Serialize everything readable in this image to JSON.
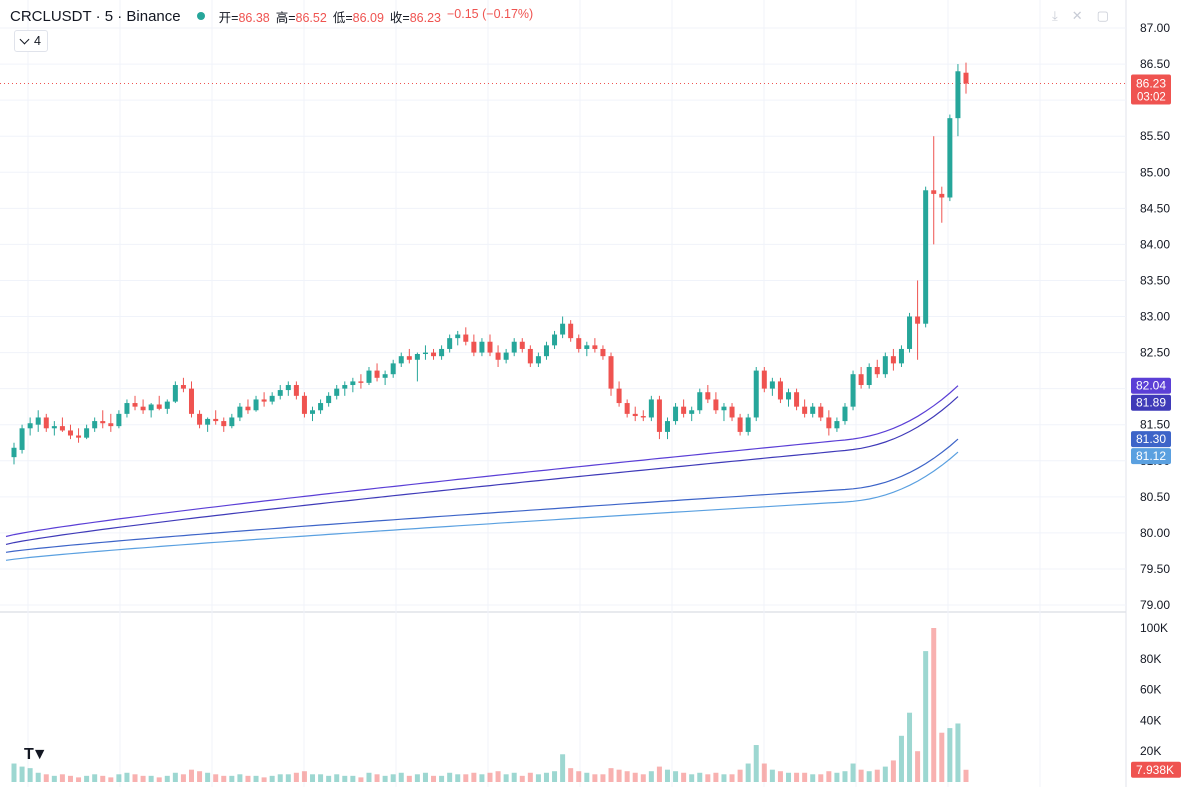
{
  "header": {
    "symbol": "CRCLUSDT · 5 · Binance",
    "open_label": "开=",
    "open_value": "86.38",
    "high_label": "高=",
    "high_value": "86.52",
    "low_label": "低=",
    "low_value": "86.09",
    "close_label": "收=",
    "close_value": "86.23",
    "change": "−0.15 (−0.17%)",
    "indicator_count": "4"
  },
  "colors": {
    "up": "#26a69a",
    "down": "#ef5350",
    "ma1": "#5b3fd6",
    "ma2": "#3f3ab8",
    "ma3": "#3d64c8",
    "ma4": "#5aa0e0"
  },
  "icons": [
    "download-icon",
    "fullscreen-toggle-icon",
    "maximize-icon",
    "chevron-down-icon"
  ],
  "chart_data": {
    "type": "candlestick",
    "price_axis": {
      "min": 79.0,
      "max": 87.0,
      "ticks": [
        "87.00",
        "86.50",
        "86.00",
        "85.50",
        "85.00",
        "84.50",
        "84.00",
        "83.50",
        "83.00",
        "82.50",
        "82.00",
        "81.50",
        "81.00",
        "80.50",
        "80.00",
        "79.50",
        "79.00"
      ]
    },
    "volume_axis": {
      "min": 0,
      "max": 100000,
      "ticks": [
        "100K",
        "80K",
        "60K",
        "40K",
        "20K"
      ]
    },
    "last_price": {
      "value": "86.23",
      "countdown": "03:02"
    },
    "ma_labels": [
      "82.04",
      "81.89",
      "81.30",
      "81.12"
    ],
    "volume_last_label": "7.938K",
    "candles": [
      [
        81.05,
        81.25,
        80.95,
        81.18,
        12000
      ],
      [
        81.15,
        81.5,
        81.1,
        81.45,
        10000
      ],
      [
        81.45,
        81.6,
        81.35,
        81.52,
        9000
      ],
      [
        81.5,
        81.7,
        81.4,
        81.6,
        6000
      ],
      [
        81.6,
        81.65,
        81.4,
        81.45,
        5000
      ],
      [
        81.45,
        81.55,
        81.35,
        81.48,
        4000
      ],
      [
        81.48,
        81.6,
        81.4,
        81.42,
        5000
      ],
      [
        81.42,
        81.5,
        81.3,
        81.35,
        4000
      ],
      [
        81.35,
        81.45,
        81.25,
        81.32,
        3000
      ],
      [
        81.32,
        81.5,
        81.3,
        81.45,
        4000
      ],
      [
        81.45,
        81.6,
        81.4,
        81.55,
        5000
      ],
      [
        81.55,
        81.7,
        81.45,
        81.52,
        4000
      ],
      [
        81.52,
        81.65,
        81.4,
        81.48,
        3000
      ],
      [
        81.48,
        81.7,
        81.45,
        81.65,
        5000
      ],
      [
        81.65,
        81.85,
        81.6,
        81.8,
        6000
      ],
      [
        81.8,
        81.9,
        81.7,
        81.75,
        5000
      ],
      [
        81.75,
        81.85,
        81.65,
        81.7,
        4000
      ],
      [
        81.7,
        81.8,
        81.6,
        81.78,
        4000
      ],
      [
        81.78,
        81.9,
        81.7,
        81.72,
        3000
      ],
      [
        81.72,
        81.85,
        81.65,
        81.82,
        4000
      ],
      [
        81.82,
        82.1,
        81.8,
        82.05,
        6000
      ],
      [
        82.05,
        82.15,
        81.95,
        82.0,
        5000
      ],
      [
        82.0,
        82.1,
        81.6,
        81.65,
        8000
      ],
      [
        81.65,
        81.7,
        81.45,
        81.5,
        7000
      ],
      [
        81.5,
        81.6,
        81.4,
        81.58,
        6000
      ],
      [
        81.58,
        81.7,
        81.5,
        81.55,
        5000
      ],
      [
        81.55,
        81.6,
        81.4,
        81.48,
        4000
      ],
      [
        81.48,
        81.65,
        81.45,
        81.6,
        4000
      ],
      [
        81.6,
        81.8,
        81.55,
        81.75,
        5000
      ],
      [
        81.75,
        81.85,
        81.65,
        81.7,
        4000
      ],
      [
        81.7,
        81.9,
        81.68,
        81.85,
        4000
      ],
      [
        81.85,
        81.95,
        81.75,
        81.82,
        3000
      ],
      [
        81.82,
        81.95,
        81.78,
        81.9,
        4000
      ],
      [
        81.9,
        82.05,
        81.85,
        81.98,
        5000
      ],
      [
        81.98,
        82.1,
        81.9,
        82.05,
        5000
      ],
      [
        82.05,
        82.1,
        81.85,
        81.9,
        6000
      ],
      [
        81.9,
        81.95,
        81.6,
        81.65,
        7000
      ],
      [
        81.65,
        81.75,
        81.55,
        81.7,
        5000
      ],
      [
        81.7,
        81.85,
        81.65,
        81.8,
        5000
      ],
      [
        81.8,
        81.95,
        81.75,
        81.9,
        4000
      ],
      [
        81.9,
        82.05,
        81.85,
        82.0,
        5000
      ],
      [
        82.0,
        82.1,
        81.9,
        82.05,
        4000
      ],
      [
        82.05,
        82.15,
        81.95,
        82.1,
        4000
      ],
      [
        82.1,
        82.2,
        82.0,
        82.08,
        3000
      ],
      [
        82.08,
        82.3,
        82.05,
        82.25,
        6000
      ],
      [
        82.25,
        82.35,
        82.1,
        82.15,
        5000
      ],
      [
        82.15,
        82.25,
        82.05,
        82.2,
        4000
      ],
      [
        82.2,
        82.4,
        82.15,
        82.35,
        5000
      ],
      [
        82.35,
        82.5,
        82.3,
        82.45,
        6000
      ],
      [
        82.45,
        82.55,
        82.35,
        82.4,
        4000
      ],
      [
        82.4,
        82.5,
        82.1,
        82.48,
        5000
      ],
      [
        82.48,
        82.6,
        82.4,
        82.5,
        6000
      ],
      [
        82.5,
        82.55,
        82.4,
        82.45,
        4000
      ],
      [
        82.45,
        82.6,
        82.4,
        82.55,
        4000
      ],
      [
        82.55,
        82.75,
        82.5,
        82.7,
        6000
      ],
      [
        82.7,
        82.8,
        82.6,
        82.75,
        5000
      ],
      [
        82.75,
        82.85,
        82.6,
        82.65,
        5000
      ],
      [
        82.65,
        82.75,
        82.45,
        82.5,
        6000
      ],
      [
        82.5,
        82.7,
        82.45,
        82.65,
        5000
      ],
      [
        82.65,
        82.75,
        82.45,
        82.5,
        6000
      ],
      [
        82.5,
        82.6,
        82.3,
        82.4,
        7000
      ],
      [
        82.4,
        82.55,
        82.35,
        82.5,
        5000
      ],
      [
        82.5,
        82.7,
        82.45,
        82.65,
        6000
      ],
      [
        82.65,
        82.7,
        82.5,
        82.55,
        4000
      ],
      [
        82.55,
        82.6,
        82.3,
        82.35,
        6000
      ],
      [
        82.35,
        82.5,
        82.3,
        82.45,
        5000
      ],
      [
        82.45,
        82.65,
        82.4,
        82.6,
        6000
      ],
      [
        82.6,
        82.8,
        82.55,
        82.75,
        7000
      ],
      [
        82.75,
        83.0,
        82.7,
        82.9,
        18000
      ],
      [
        82.9,
        82.95,
        82.65,
        82.7,
        9000
      ],
      [
        82.7,
        82.75,
        82.5,
        82.55,
        7000
      ],
      [
        82.55,
        82.65,
        82.45,
        82.6,
        6000
      ],
      [
        82.6,
        82.7,
        82.5,
        82.55,
        5000
      ],
      [
        82.55,
        82.6,
        82.4,
        82.45,
        5000
      ],
      [
        82.45,
        82.5,
        81.9,
        82.0,
        9000
      ],
      [
        82.0,
        82.1,
        81.75,
        81.8,
        8000
      ],
      [
        81.8,
        81.85,
        81.6,
        81.65,
        7000
      ],
      [
        81.65,
        81.75,
        81.55,
        81.62,
        6000
      ],
      [
        81.62,
        81.7,
        81.55,
        81.6,
        5000
      ],
      [
        81.6,
        81.9,
        81.55,
        81.85,
        7000
      ],
      [
        81.85,
        81.9,
        81.3,
        81.4,
        10000
      ],
      [
        81.4,
        81.6,
        81.3,
        81.55,
        8000
      ],
      [
        81.55,
        81.8,
        81.5,
        81.75,
        7000
      ],
      [
        81.75,
        81.85,
        81.6,
        81.65,
        6000
      ],
      [
        81.65,
        81.75,
        81.55,
        81.7,
        5000
      ],
      [
        81.7,
        82.0,
        81.65,
        81.95,
        6000
      ],
      [
        81.95,
        82.05,
        81.8,
        81.85,
        5000
      ],
      [
        81.85,
        81.95,
        81.65,
        81.7,
        6000
      ],
      [
        81.7,
        81.8,
        81.55,
        81.75,
        5000
      ],
      [
        81.75,
        81.8,
        81.55,
        81.6,
        5000
      ],
      [
        81.6,
        81.65,
        81.35,
        81.4,
        8000
      ],
      [
        81.4,
        81.65,
        81.35,
        81.6,
        12000
      ],
      [
        81.6,
        82.3,
        81.55,
        82.25,
        24000
      ],
      [
        82.25,
        82.3,
        81.95,
        82.0,
        12000
      ],
      [
        82.0,
        82.15,
        81.9,
        82.1,
        8000
      ],
      [
        82.1,
        82.15,
        81.8,
        81.85,
        7000
      ],
      [
        81.85,
        82.0,
        81.75,
        81.95,
        6000
      ],
      [
        81.95,
        82.0,
        81.7,
        81.75,
        6000
      ],
      [
        81.75,
        81.85,
        81.6,
        81.65,
        6000
      ],
      [
        81.65,
        81.8,
        81.6,
        81.75,
        5000
      ],
      [
        81.75,
        81.8,
        81.55,
        81.6,
        5000
      ],
      [
        81.6,
        81.7,
        81.35,
        81.45,
        7000
      ],
      [
        81.45,
        81.6,
        81.4,
        81.55,
        6000
      ],
      [
        81.55,
        81.8,
        81.5,
        81.75,
        7000
      ],
      [
        81.75,
        82.25,
        81.7,
        82.2,
        12000
      ],
      [
        82.2,
        82.3,
        82.0,
        82.05,
        8000
      ],
      [
        82.05,
        82.35,
        82.0,
        82.3,
        7000
      ],
      [
        82.3,
        82.4,
        82.15,
        82.2,
        8000
      ],
      [
        82.2,
        82.5,
        82.15,
        82.45,
        10000
      ],
      [
        82.45,
        82.55,
        82.25,
        82.35,
        14000
      ],
      [
        82.35,
        82.6,
        82.3,
        82.55,
        30000
      ],
      [
        82.55,
        83.05,
        82.5,
        83.0,
        45000
      ],
      [
        83.0,
        83.5,
        82.4,
        82.9,
        20000
      ],
      [
        82.9,
        84.8,
        82.85,
        84.75,
        85000
      ],
      [
        84.75,
        85.5,
        84.0,
        84.7,
        100000
      ],
      [
        84.7,
        84.8,
        84.3,
        84.65,
        32000
      ],
      [
        84.65,
        85.8,
        84.6,
        85.75,
        35000
      ],
      [
        85.75,
        86.5,
        85.5,
        86.4,
        38000
      ],
      [
        86.38,
        86.52,
        86.09,
        86.23,
        7938
      ]
    ]
  }
}
